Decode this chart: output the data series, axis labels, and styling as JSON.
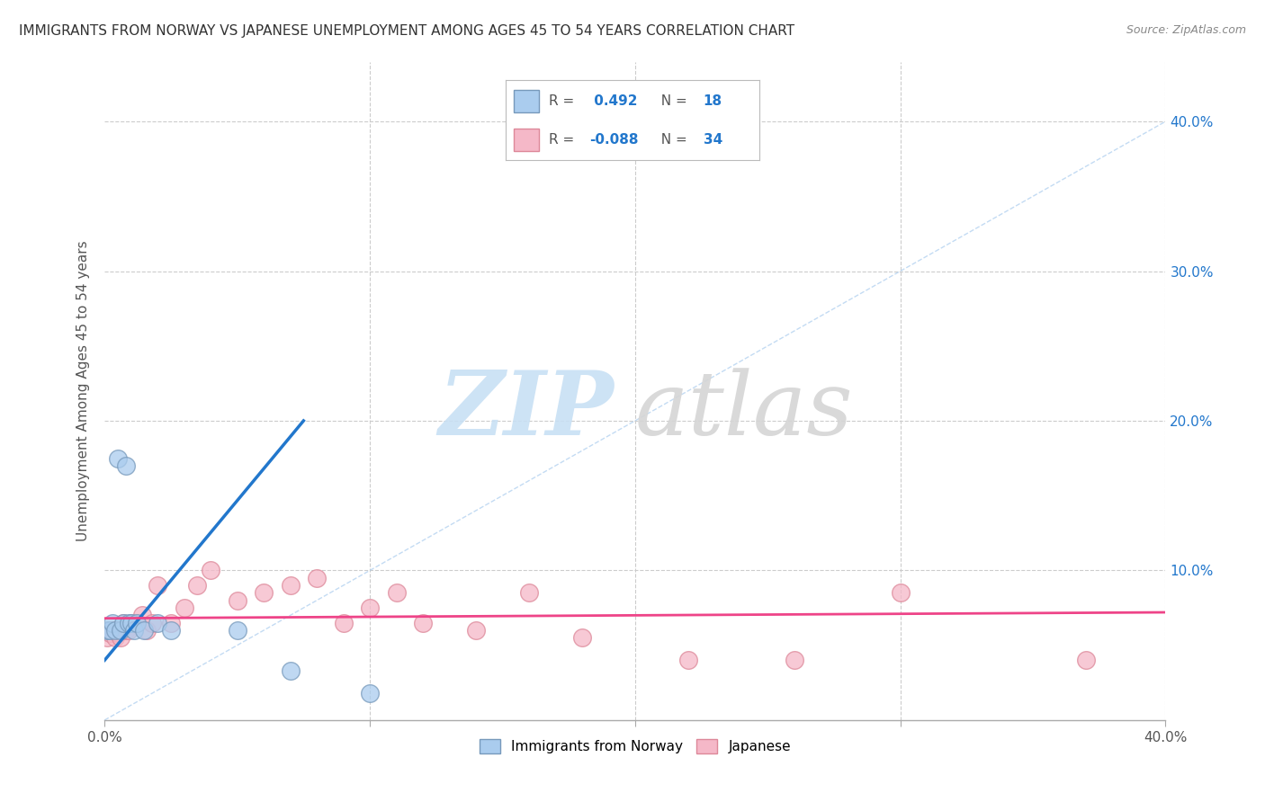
{
  "title": "IMMIGRANTS FROM NORWAY VS JAPANESE UNEMPLOYMENT AMONG AGES 45 TO 54 YEARS CORRELATION CHART",
  "source": "Source: ZipAtlas.com",
  "ylabel": "Unemployment Among Ages 45 to 54 years",
  "xlim": [
    0.0,
    0.4
  ],
  "ylim": [
    0.0,
    0.44
  ],
  "xticks": [
    0.0,
    0.1,
    0.2,
    0.3,
    0.4
  ],
  "xtick_labels": [
    "0.0%",
    "",
    "",
    "",
    "40.0%"
  ],
  "yticks": [
    0.0,
    0.1,
    0.2,
    0.3,
    0.4
  ],
  "right_ytick_labels": [
    "",
    "10.0%",
    "20.0%",
    "30.0%",
    "40.0%"
  ],
  "background_color": "#ffffff",
  "grid_color": "#cccccc",
  "norway_color": "#aaccee",
  "norway_edge_color": "#7799bb",
  "japanese_color": "#f5b8c8",
  "japanese_edge_color": "#dd8899",
  "norway_R": 0.492,
  "norway_N": 18,
  "japanese_R": -0.088,
  "japanese_N": 34,
  "norway_line_color": "#2277cc",
  "japanese_line_color": "#ee4488",
  "diag_color": "#aaccee",
  "legend_text_color": "#2277cc",
  "norway_scatter_x": [
    0.001,
    0.002,
    0.003,
    0.004,
    0.005,
    0.006,
    0.007,
    0.008,
    0.009,
    0.01,
    0.011,
    0.012,
    0.015,
    0.02,
    0.025,
    0.05,
    0.07,
    0.1
  ],
  "norway_scatter_y": [
    0.06,
    0.06,
    0.065,
    0.06,
    0.175,
    0.06,
    0.065,
    0.17,
    0.065,
    0.065,
    0.06,
    0.065,
    0.06,
    0.065,
    0.06,
    0.06,
    0.033,
    0.018
  ],
  "japanese_scatter_x": [
    0.001,
    0.002,
    0.003,
    0.004,
    0.005,
    0.006,
    0.007,
    0.008,
    0.009,
    0.01,
    0.012,
    0.014,
    0.016,
    0.018,
    0.02,
    0.025,
    0.03,
    0.035,
    0.04,
    0.05,
    0.06,
    0.07,
    0.08,
    0.09,
    0.1,
    0.11,
    0.12,
    0.14,
    0.16,
    0.18,
    0.22,
    0.26,
    0.3,
    0.37
  ],
  "japanese_scatter_y": [
    0.055,
    0.058,
    0.06,
    0.055,
    0.058,
    0.055,
    0.065,
    0.06,
    0.06,
    0.065,
    0.065,
    0.07,
    0.06,
    0.065,
    0.09,
    0.065,
    0.075,
    0.09,
    0.1,
    0.08,
    0.085,
    0.09,
    0.095,
    0.065,
    0.075,
    0.085,
    0.065,
    0.06,
    0.085,
    0.055,
    0.04,
    0.04,
    0.085,
    0.04
  ],
  "norway_line_x_start": 0.0,
  "norway_line_x_end": 0.075,
  "norway_line_y_start": 0.04,
  "norway_line_y_end": 0.2,
  "japanese_line_x_start": 0.0,
  "japanese_line_x_end": 0.4,
  "japanese_line_y_start": 0.068,
  "japanese_line_y_end": 0.072
}
